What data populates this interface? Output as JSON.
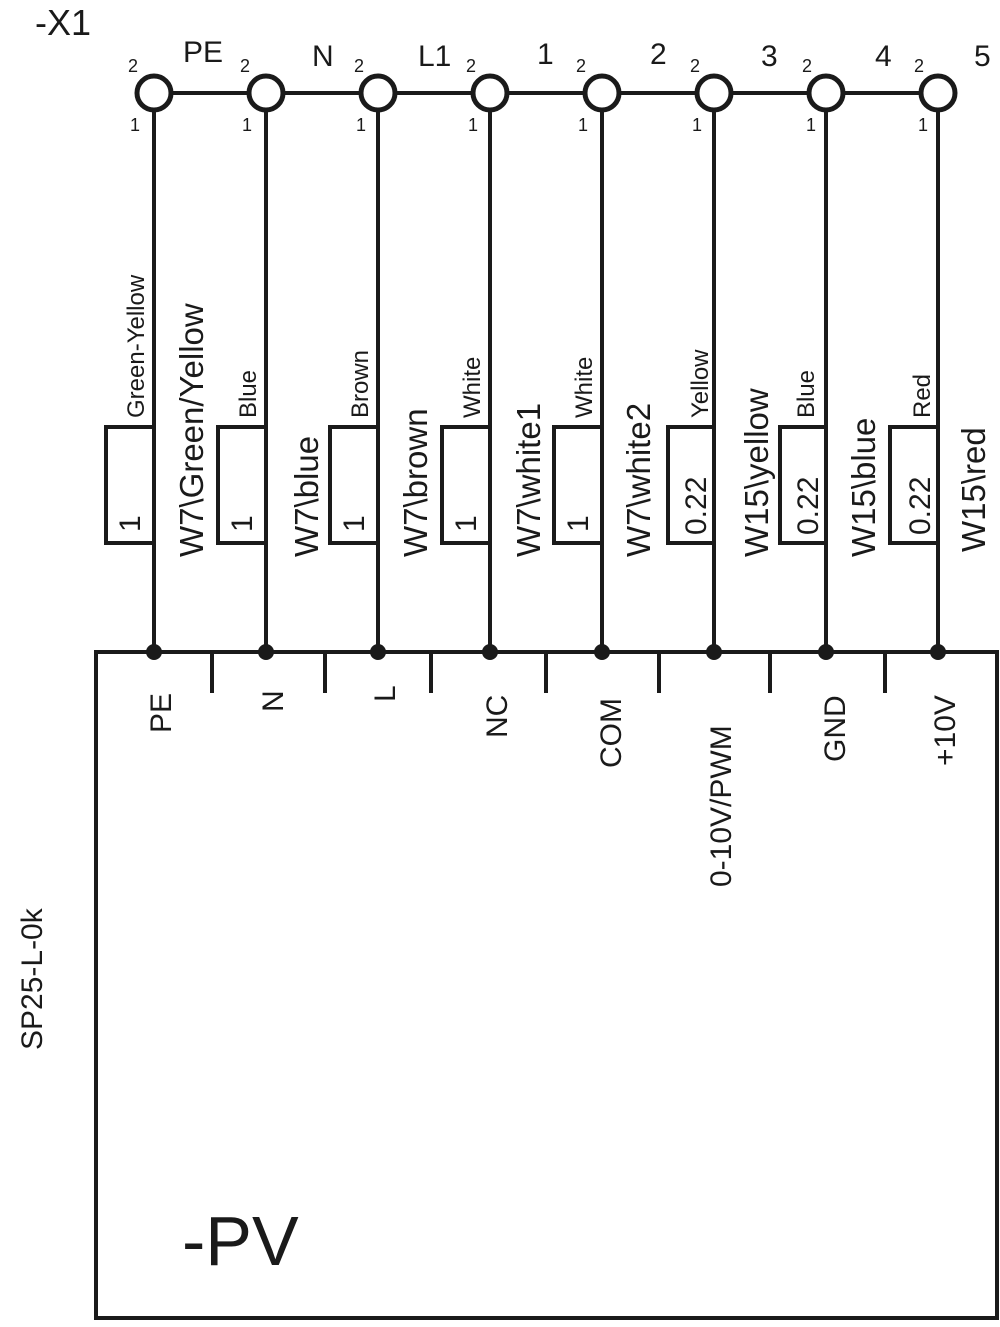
{
  "terminal_block": {
    "name": "-X1",
    "gap_labels": [
      "PE",
      "N",
      "L1",
      "1",
      "2",
      "3",
      "4",
      "5"
    ],
    "pin_top": "2",
    "pin_bottom": "1"
  },
  "conductors": [
    {
      "color": "Green-Yellow",
      "size": "1",
      "wire": "W7\\Green/Yellow",
      "terminal": "PE"
    },
    {
      "color": "Blue",
      "size": "1",
      "wire": "W7\\blue",
      "terminal": "N"
    },
    {
      "color": "Brown",
      "size": "1",
      "wire": "W7\\brown",
      "terminal": "L"
    },
    {
      "color": "White",
      "size": "1",
      "wire": "W7\\white1",
      "terminal": "NC"
    },
    {
      "color": "White",
      "size": "1",
      "wire": "W7\\white2",
      "terminal": "COM"
    },
    {
      "color": "Yellow",
      "size": "0.22",
      "wire": "W15\\yellow",
      "terminal": "0-10V/PWM"
    },
    {
      "color": "Blue",
      "size": "0.22",
      "wire": "W15\\blue",
      "terminal": "GND"
    },
    {
      "color": "Red",
      "size": "0.22",
      "wire": "W15\\red",
      "terminal": "+10V"
    }
  ],
  "device": {
    "name": "-PV",
    "model": "SP25-L-0k"
  }
}
